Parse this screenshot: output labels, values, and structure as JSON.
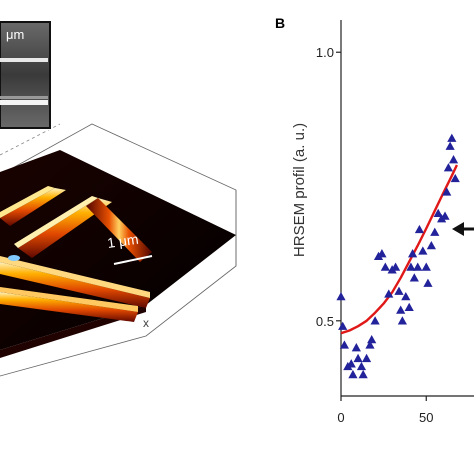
{
  "panel_b": {
    "letter": "B",
    "ylabel": "HRSEM profil (a. u.)",
    "ytick_labels": [
      "1.0",
      "0.5"
    ],
    "xtick_labels": [
      "0",
      "50"
    ]
  },
  "panel_a": {
    "inset_scale_label": "μm",
    "scale_label": "1 μm",
    "x_axis_label": "x"
  },
  "colors": {
    "marker": "#22229a",
    "fit": "#e01818",
    "surface_dark": "#0a0000",
    "surface_hot": "#ff9a00"
  },
  "chart_data": {
    "type": "scatter",
    "xlim": [
      0,
      78
    ],
    "ylim": [
      0.36,
      1.06
    ],
    "markers": "triangle",
    "points": [
      [
        0,
        0.545
      ],
      [
        1,
        0.49
      ],
      [
        2,
        0.455
      ],
      [
        4,
        0.415
      ],
      [
        6,
        0.42
      ],
      [
        7,
        0.4
      ],
      [
        9,
        0.45
      ],
      [
        10,
        0.43
      ],
      [
        12,
        0.415
      ],
      [
        13,
        0.4
      ],
      [
        15,
        0.43
      ],
      [
        17,
        0.455
      ],
      [
        18,
        0.465
      ],
      [
        20,
        0.5
      ],
      [
        22,
        0.62
      ],
      [
        24,
        0.625
      ],
      [
        26,
        0.6
      ],
      [
        28,
        0.55
      ],
      [
        30,
        0.595
      ],
      [
        32,
        0.6
      ],
      [
        34,
        0.555
      ],
      [
        35,
        0.52
      ],
      [
        36,
        0.5
      ],
      [
        38,
        0.545
      ],
      [
        40,
        0.525
      ],
      [
        41,
        0.6
      ],
      [
        42,
        0.625
      ],
      [
        43,
        0.58
      ],
      [
        45,
        0.6
      ],
      [
        46,
        0.67
      ],
      [
        48,
        0.63
      ],
      [
        50,
        0.6
      ],
      [
        51,
        0.57
      ],
      [
        53,
        0.64
      ],
      [
        55,
        0.665
      ],
      [
        57,
        0.7
      ],
      [
        59,
        0.69
      ],
      [
        61,
        0.695
      ],
      [
        62,
        0.74
      ],
      [
        63,
        0.785
      ],
      [
        64,
        0.825
      ],
      [
        65,
        0.84
      ],
      [
        66,
        0.8
      ],
      [
        67,
        0.765
      ]
    ],
    "fit_curve": {
      "x": [
        0,
        5,
        10,
        15,
        20,
        25,
        30,
        35,
        40,
        45,
        50,
        55,
        60,
        65,
        68
      ],
      "y": [
        0.477,
        0.482,
        0.49,
        0.5,
        0.515,
        0.532,
        0.553,
        0.58,
        0.61,
        0.64,
        0.672,
        0.705,
        0.738,
        0.77,
        0.79
      ]
    }
  }
}
